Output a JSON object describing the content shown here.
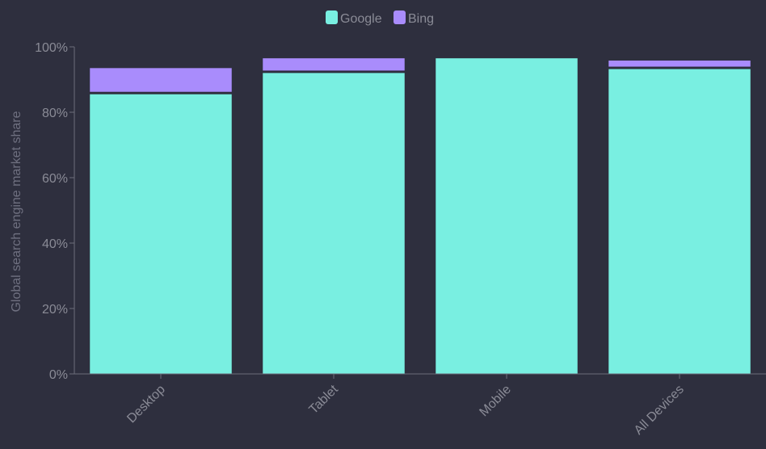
{
  "chart_data": {
    "type": "bar",
    "stacked": true,
    "categories": [
      "Desktop",
      "Tablet",
      "Mobile",
      "All Devices"
    ],
    "series": [
      {
        "name": "Google",
        "color": "#79efe1",
        "values": [
          85.5,
          92.0,
          96.5,
          93.2
        ]
      },
      {
        "name": "Bing",
        "color": "#a98cfc",
        "values": [
          8.0,
          4.5,
          0.5,
          2.6
        ]
      }
    ],
    "ylabel": "Global search engine market share",
    "xlabel": "",
    "ylim": [
      0,
      100
    ],
    "yticks": [
      0,
      20,
      40,
      60,
      80,
      100
    ],
    "ytick_format": "%",
    "legend_position": "top-center",
    "grid": false
  }
}
